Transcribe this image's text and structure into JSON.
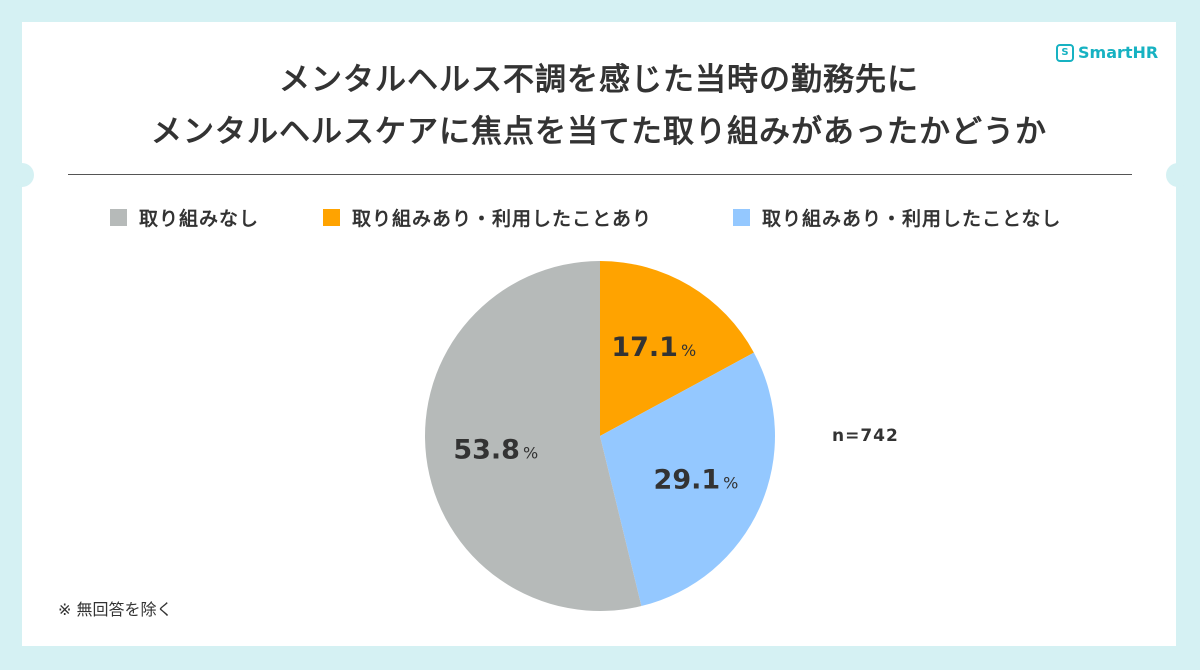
{
  "brand": {
    "name": "SmartHR",
    "icon": "shield-logo-icon"
  },
  "title": {
    "line1": "メンタルヘルス不調を感じた当時の勤務先に",
    "line2": "メンタルヘルスケアに焦点を当てた取り組みがあったかどうか"
  },
  "sample_size": "n=742",
  "footnote": "※ 無回答を除く",
  "chart_data": {
    "type": "pie",
    "title": "メンタルヘルス不調を感じた当時の勤務先にメンタルヘルスケアに焦点を当てた取り組みがあったかどうか",
    "unit": "%",
    "legend_position": "top",
    "slices": [
      {
        "name": "取り組みあり・利用したことあり",
        "value": 17.1,
        "label": "17.1",
        "color": "#ffa300"
      },
      {
        "name": "取り組みあり・利用したことなし",
        "value": 29.1,
        "label": "29.1",
        "color": "#94c8ff"
      },
      {
        "name": "取り組みなし",
        "value": 53.8,
        "label": "53.8",
        "color": "#b6bab9"
      }
    ],
    "legend": [
      {
        "name": "取り組みなし",
        "color": "#b6bab9"
      },
      {
        "name": "取り組みあり・利用したことあり",
        "color": "#ffa300"
      },
      {
        "name": "取り組みあり・利用したことなし",
        "color": "#94c8ff"
      }
    ]
  }
}
